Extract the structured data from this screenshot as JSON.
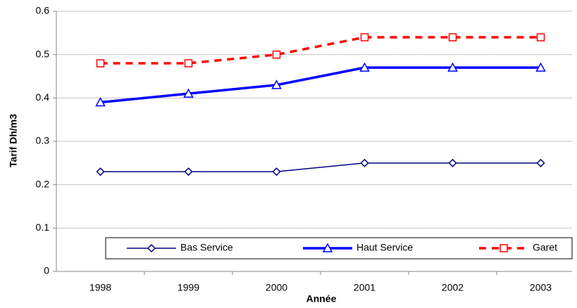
{
  "chart_data": {
    "type": "line",
    "x_label": "Année",
    "y_label": "Tarif Dh/m3",
    "categories": [
      "1998",
      "1999",
      "2000",
      "2001",
      "2002",
      "2003"
    ],
    "series": [
      {
        "name": "Bas Service",
        "color": "#000080",
        "marker": "diamond",
        "dashed": false,
        "line_width": 1.5,
        "values": [
          0.23,
          0.23,
          0.23,
          0.25,
          0.25,
          0.25
        ]
      },
      {
        "name": "Haut Service",
        "color": "#0000ff",
        "marker": "triangle",
        "dashed": false,
        "line_width": 3.5,
        "values": [
          0.39,
          0.41,
          0.43,
          0.47,
          0.47,
          0.47
        ]
      },
      {
        "name": "Garet",
        "color": "#ff0000",
        "marker": "square",
        "dashed": true,
        "line_width": 3.5,
        "values": [
          0.48,
          0.48,
          0.5,
          0.54,
          0.54,
          0.54
        ]
      }
    ],
    "ylim": [
      0,
      0.6
    ],
    "yticks": [
      0,
      0.1,
      0.2,
      0.3,
      0.4,
      0.5,
      0.6
    ],
    "grid": true,
    "legend": "bottom"
  }
}
